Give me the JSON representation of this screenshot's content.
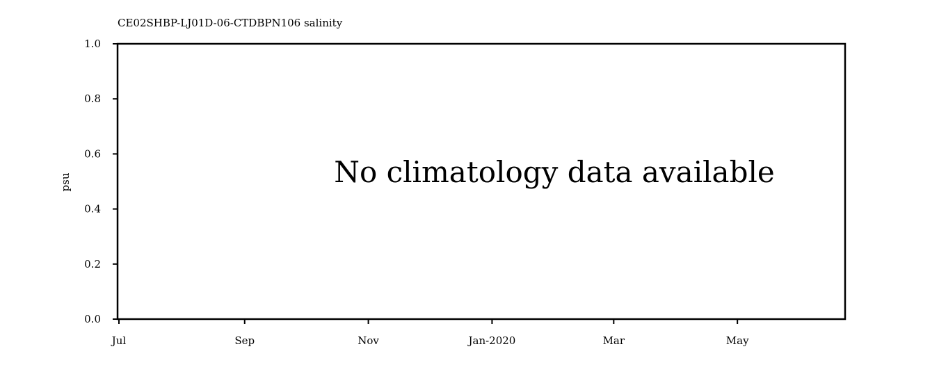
{
  "chart_data": {
    "type": "line",
    "title": "CE02SHBP-LJ01D-06-CTDBPN106 salinity",
    "xlabel": "",
    "ylabel": "psu",
    "ylim": [
      0.0,
      1.0
    ],
    "yticks": [
      "0.0",
      "0.2",
      "0.4",
      "0.6",
      "0.8",
      "1.0"
    ],
    "xlim": [
      "2019-07-01",
      "2020-07-01"
    ],
    "xticks": [
      {
        "date": "2019-07-01",
        "label": "Jul"
      },
      {
        "date": "2019-09-01",
        "label": "Sep"
      },
      {
        "date": "2019-11-01",
        "label": "Nov"
      },
      {
        "date": "2020-01-01",
        "label": "Jan-2020"
      },
      {
        "date": "2020-03-01",
        "label": "Mar"
      },
      {
        "date": "2020-05-01",
        "label": "May"
      }
    ],
    "series": [],
    "annotation": "No climatology data available",
    "grid": false
  }
}
